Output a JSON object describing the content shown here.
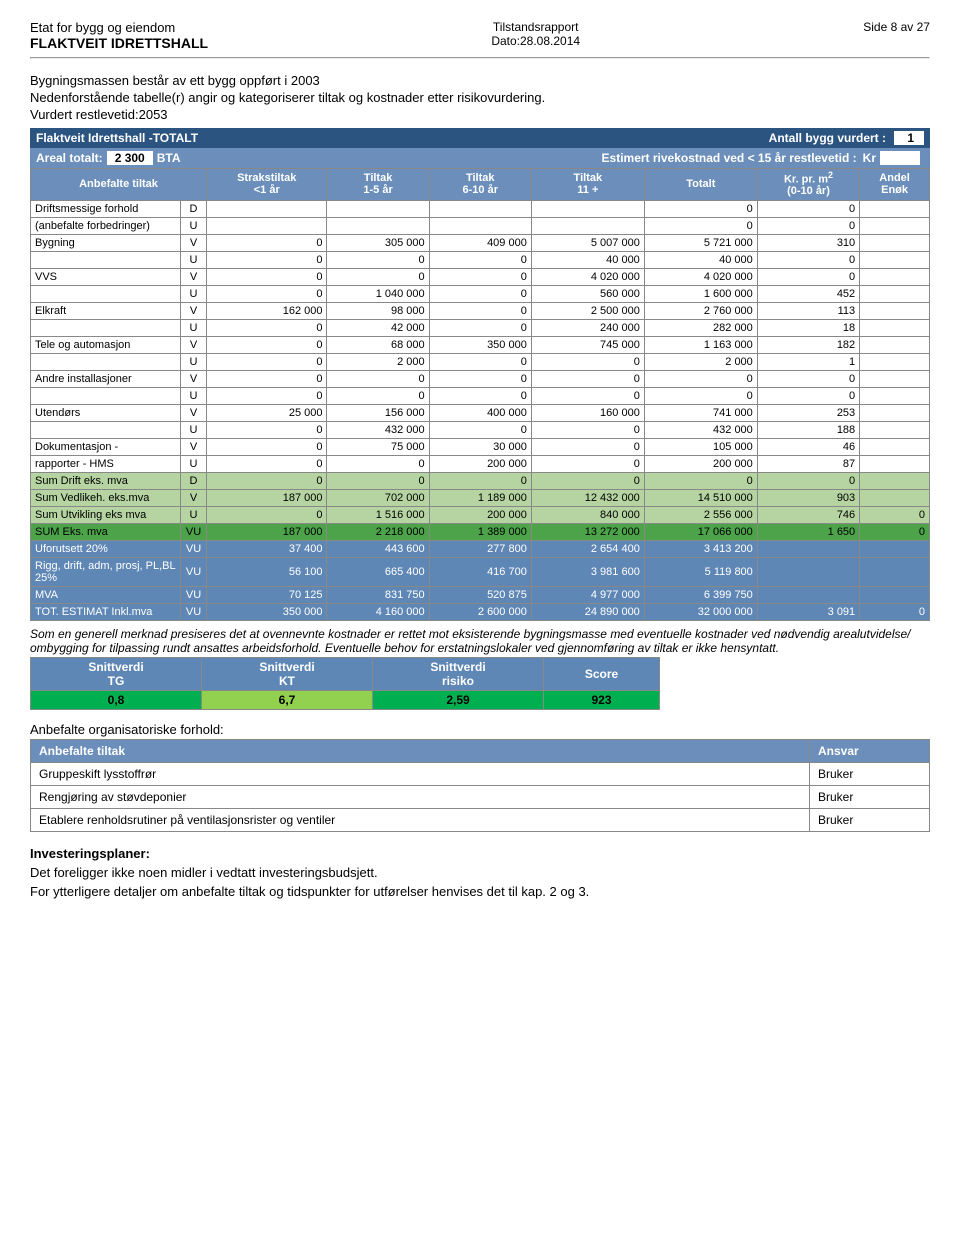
{
  "header": {
    "owner": "Etat for bygg og eiendom",
    "building": "FLAKTVEIT IDRETTSHALL",
    "center_title": "Tilstandsrapport",
    "date": "Dato:28.08.2014",
    "page": "Side 8 av 27"
  },
  "intro": {
    "line1": "Bygningsmassen består av ett bygg oppført i 2003",
    "line2": "Nedenforstående tabelle(r) angir og kategoriserer tiltak og kostnader etter risikovurdering.",
    "line3": "Vurdert restlevetid:2053"
  },
  "bar1": {
    "title": "Flaktveit Idrettshall -TOTALT",
    "label_right": "Antall bygg vurdert :",
    "count": "1"
  },
  "bar2": {
    "areal_label": "Areal totalt:",
    "areal_val": "2 300",
    "bta": "BTA",
    "est_label": "Estimert rivekostnad ved < 15 år restlevetid :",
    "kr": "Kr"
  },
  "thead": {
    "c0": "Anbefalte tiltak",
    "c1a": "Strakstiltak",
    "c1b": "<1 år",
    "c2a": "Tiltak",
    "c2b": "1-5 år",
    "c3a": "Tiltak",
    "c3b": "6-10 år",
    "c4a": "Tiltak",
    "c4b": "11 +",
    "c5": "Totalt",
    "c6a": "Kr. pr. m",
    "c6b": "(0-10 år)",
    "c6sup": "2",
    "c7a": "Andel",
    "c7b": "Enøk"
  },
  "rows": [
    {
      "label": "Driftsmessige forhold",
      "code": "D",
      "v": [
        "",
        "",
        "",
        "",
        "0",
        "0",
        ""
      ],
      "cls": ""
    },
    {
      "label": "(anbefalte forbedringer)",
      "code": "U",
      "v": [
        "",
        "",
        "",
        "",
        "0",
        "0",
        ""
      ],
      "cls": ""
    },
    {
      "label": "Bygning",
      "code": "V",
      "v": [
        "0",
        "305 000",
        "409 000",
        "5 007 000",
        "5 721 000",
        "310",
        ""
      ],
      "cls": ""
    },
    {
      "label": "",
      "code": "U",
      "v": [
        "0",
        "0",
        "0",
        "40 000",
        "40 000",
        "0",
        ""
      ],
      "cls": ""
    },
    {
      "label": "VVS",
      "code": "V",
      "v": [
        "0",
        "0",
        "0",
        "4 020 000",
        "4 020 000",
        "0",
        ""
      ],
      "cls": ""
    },
    {
      "label": "",
      "code": "U",
      "v": [
        "0",
        "1 040 000",
        "0",
        "560 000",
        "1 600 000",
        "452",
        ""
      ],
      "cls": ""
    },
    {
      "label": "Elkraft",
      "code": "V",
      "v": [
        "162 000",
        "98 000",
        "0",
        "2 500 000",
        "2 760 000",
        "113",
        ""
      ],
      "cls": ""
    },
    {
      "label": "",
      "code": "U",
      "v": [
        "0",
        "42 000",
        "0",
        "240 000",
        "282 000",
        "18",
        ""
      ],
      "cls": ""
    },
    {
      "label": "Tele og automasjon",
      "code": "V",
      "v": [
        "0",
        "68 000",
        "350 000",
        "745 000",
        "1 163 000",
        "182",
        ""
      ],
      "cls": ""
    },
    {
      "label": "",
      "code": "U",
      "v": [
        "0",
        "2 000",
        "0",
        "0",
        "2 000",
        "1",
        ""
      ],
      "cls": ""
    },
    {
      "label": "Andre installasjoner",
      "code": "V",
      "v": [
        "0",
        "0",
        "0",
        "0",
        "0",
        "0",
        ""
      ],
      "cls": ""
    },
    {
      "label": "",
      "code": "U",
      "v": [
        "0",
        "0",
        "0",
        "0",
        "0",
        "0",
        ""
      ],
      "cls": ""
    },
    {
      "label": "Utendørs",
      "code": "V",
      "v": [
        "25 000",
        "156 000",
        "400 000",
        "160 000",
        "741 000",
        "253",
        ""
      ],
      "cls": ""
    },
    {
      "label": "",
      "code": "U",
      "v": [
        "0",
        "432 000",
        "0",
        "0",
        "432 000",
        "188",
        ""
      ],
      "cls": ""
    },
    {
      "label": "Dokumentasjon -",
      "code": "V",
      "v": [
        "0",
        "75 000",
        "30 000",
        "0",
        "105 000",
        "46",
        ""
      ],
      "cls": ""
    },
    {
      "label": "rapporter - HMS",
      "code": "U",
      "v": [
        "0",
        "0",
        "200 000",
        "0",
        "200 000",
        "87",
        ""
      ],
      "cls": ""
    },
    {
      "label": "Sum Drift eks. mva",
      "code": "D",
      "v": [
        "0",
        "0",
        "0",
        "0",
        "0",
        "0",
        ""
      ],
      "cls": "sum-d"
    },
    {
      "label": "Sum Vedlikeh. eks.mva",
      "code": "V",
      "v": [
        "187 000",
        "702 000",
        "1 189 000",
        "12 432 000",
        "14 510 000",
        "903",
        ""
      ],
      "cls": "sum-d"
    },
    {
      "label": "Sum Utvikling eks mva",
      "code": "U",
      "v": [
        "0",
        "1 516 000",
        "200 000",
        "840 000",
        "2 556 000",
        "746",
        "0"
      ],
      "cls": "sum-d"
    },
    {
      "label": "SUM Eks. mva",
      "code": "VU",
      "v": [
        "187 000",
        "2 218 000",
        "1 389 000",
        "13 272 000",
        "17 066 000",
        "1 650",
        "0"
      ],
      "cls": "sum-darkgreen"
    },
    {
      "label": "Uforutsett 20%",
      "code": "VU",
      "v": [
        "37 400",
        "443 600",
        "277 800",
        "2 654 400",
        "3 413 200",
        "",
        ""
      ],
      "cls": "bg-blue"
    },
    {
      "label": "Rigg, drift, adm, prosj, PL,BL 25%",
      "code": "VU",
      "v": [
        "56 100",
        "665 400",
        "416 700",
        "3 981 600",
        "5 119 800",
        "",
        ""
      ],
      "cls": "bg-blue"
    },
    {
      "label": "MVA",
      "code": "VU",
      "v": [
        "70 125",
        "831 750",
        "520 875",
        "4 977 000",
        "6 399 750",
        "",
        ""
      ],
      "cls": "bg-blue"
    },
    {
      "label": "TOT. ESTIMAT Inkl.mva",
      "code": "VU",
      "v": [
        "350 000",
        "4 160 000",
        "2 600 000",
        "24 890 000",
        "32 000 000",
        "3 091",
        "0"
      ],
      "cls": "sum-blue"
    }
  ],
  "note": "Som en generell merknad presiseres det at ovennevnte kostnader er rettet mot eksisterende bygningsmasse med eventuelle kostnader ved nødvendig arealutvidelse/ ombygging for tilpassing rundt ansattes arbeidsforhold. Eventuelle behov for erstatningslokaler ved gjennomføring av tiltak er ikke hensyntatt.",
  "scores": {
    "h1": "Snittverdi",
    "h2": "Snittverdi",
    "h3": "Snittverdi",
    "s1": "TG",
    "s2": "KT",
    "s3": "risiko",
    "s4": "Score",
    "v1": "0,8",
    "v2": "6,7",
    "v3": "2,59",
    "v4": "923",
    "c1": "green-cell",
    "c2": "lime-cell",
    "c3": "green-cell",
    "c4": "green-cell"
  },
  "org": {
    "title": "Anbefalte organisatoriske forhold:",
    "th1": "Anbefalte tiltak",
    "th2": "Ansvar",
    "rows": [
      {
        "t": "Gruppeskift lysstoffrør",
        "a": "Bruker"
      },
      {
        "t": "Rengjøring av støvdeponier",
        "a": "Bruker"
      },
      {
        "t": "Etablere renholdsrutiner på ventilasjonsrister og ventiler",
        "a": "Bruker"
      }
    ]
  },
  "invest": {
    "h": "Investeringsplaner:",
    "p1": "Det foreligger ikke noen midler i vedtatt investeringsbudsjett.",
    "p2": "For ytterligere detaljer om anbefalte tiltak og tidspunkter for utførelser henvises det til kap. 2 og 3."
  }
}
